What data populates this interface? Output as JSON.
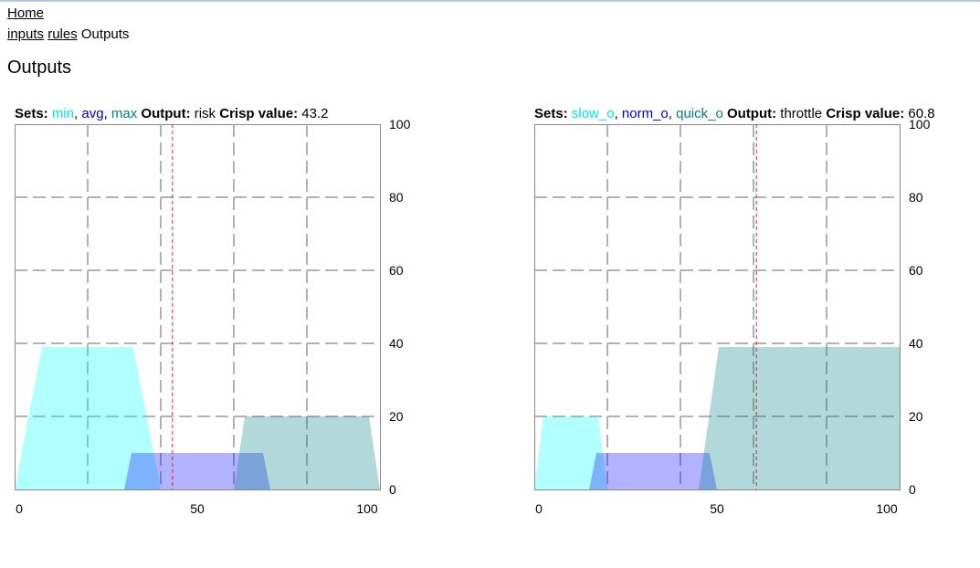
{
  "nav": {
    "home": "Home",
    "breadcrumb": {
      "inputs": "inputs",
      "rules": "rules",
      "current": "Outputs"
    }
  },
  "page_title": "Outputs",
  "labels": {
    "sets": "Sets:",
    "output": "Output:",
    "crisp": "Crisp value:"
  },
  "charts": [
    {
      "sets": [
        {
          "name": "min",
          "color": "#00e5e5"
        },
        {
          "name": "avg",
          "color": "#0000d0"
        },
        {
          "name": "max",
          "color": "#008080"
        }
      ],
      "output_name": "risk",
      "crisp_value": "43.2"
    },
    {
      "sets": [
        {
          "name": "slow_o",
          "color": "#00e5e5"
        },
        {
          "name": "norm_o",
          "color": "#0000d0"
        },
        {
          "name": "quick_o",
          "color": "#008080"
        }
      ],
      "output_name": "throttle",
      "crisp_value": "60.8"
    }
  ],
  "chart_data": [
    {
      "type": "area",
      "title": "risk",
      "xlim": [
        0,
        100
      ],
      "ylim": [
        0,
        100
      ],
      "x_ticks": [
        0,
        50,
        100
      ],
      "y_ticks": [
        0,
        20,
        40,
        60,
        80,
        100
      ],
      "grid": true,
      "crisp_value": 43.2,
      "series": [
        {
          "name": "min",
          "fill": "#00ffff",
          "opacity": 0.3,
          "points": [
            [
              0,
              0
            ],
            [
              7.5,
              39
            ],
            [
              32.5,
              39
            ],
            [
              40,
              0
            ]
          ]
        },
        {
          "name": "avg",
          "fill": "#0000ff",
          "opacity": 0.3,
          "points": [
            [
              30,
              0
            ],
            [
              32,
              10
            ],
            [
              68,
              10
            ],
            [
              70,
              0
            ]
          ]
        },
        {
          "name": "max",
          "fill": "#008080",
          "opacity": 0.3,
          "points": [
            [
              60,
              0
            ],
            [
              63,
              20
            ],
            [
              97,
              20
            ],
            [
              100,
              0
            ]
          ]
        }
      ]
    },
    {
      "type": "area",
      "title": "throttle",
      "xlim": [
        0,
        100
      ],
      "ylim": [
        0,
        100
      ],
      "x_ticks": [
        0,
        50,
        100
      ],
      "y_ticks": [
        0,
        20,
        40,
        60,
        80,
        100
      ],
      "grid": true,
      "crisp_value": 60.8,
      "series": [
        {
          "name": "slow_o",
          "fill": "#00ffff",
          "opacity": 0.3,
          "points": [
            [
              0,
              0
            ],
            [
              2.5,
              20
            ],
            [
              17.5,
              20
            ],
            [
              20,
              0
            ]
          ]
        },
        {
          "name": "norm_o",
          "fill": "#0000ff",
          "opacity": 0.3,
          "points": [
            [
              15,
              0
            ],
            [
              17,
              10
            ],
            [
              48,
              10
            ],
            [
              50,
              0
            ]
          ]
        },
        {
          "name": "quick_o",
          "fill": "#008080",
          "opacity": 0.3,
          "points": [
            [
              45,
              0
            ],
            [
              50.5,
              39
            ],
            [
              100,
              39
            ],
            [
              100,
              0
            ]
          ]
        }
      ]
    }
  ]
}
